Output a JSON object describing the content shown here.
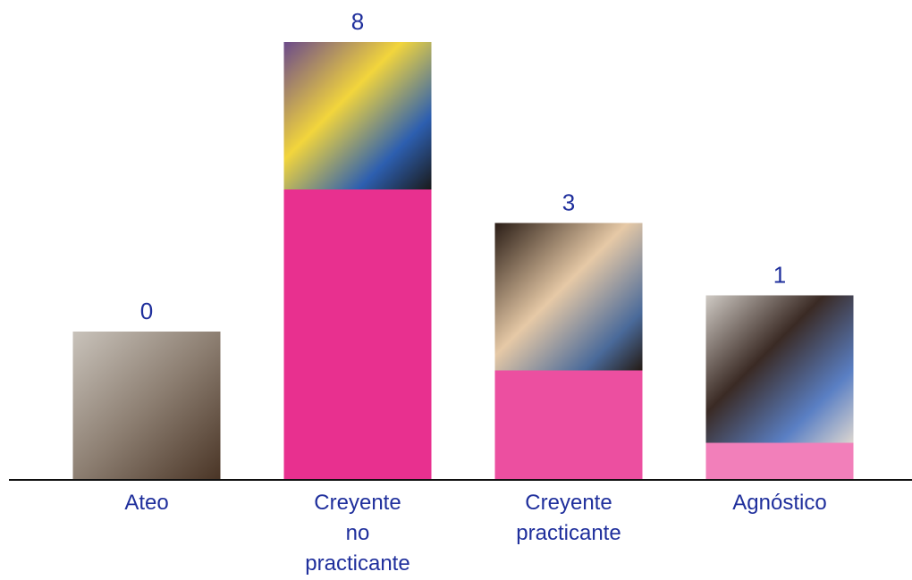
{
  "chart_data": {
    "type": "bar",
    "categories": [
      "Ateo",
      "Creyente\nno\npracticante",
      "Creyente\npracticante",
      "Agnóstico"
    ],
    "values": [
      0,
      8,
      3,
      1
    ],
    "colors": [
      "#e8308f",
      "#e8308f",
      "#ec4fa0",
      "#f27fba"
    ],
    "label_color": "#1f2f9c"
  }
}
